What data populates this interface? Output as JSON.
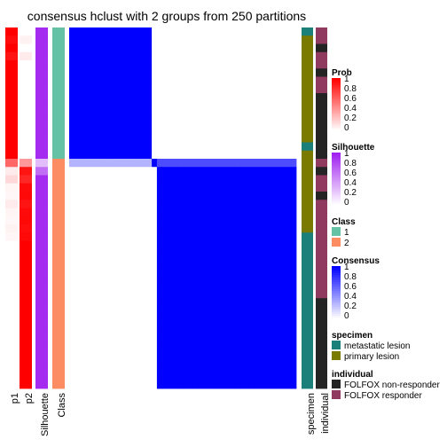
{
  "chart_data": {
    "type": "heatmap",
    "title": "consensus hclust with 2 groups from 250 partitions",
    "n_samples": 44,
    "sample_order_note": "columns/rows ordered by consensus class; first 16 samples in class 1, remaining 28 in class 2",
    "annotation_columns": [
      "p1",
      "p2",
      "Silhouette",
      "Class"
    ],
    "bottom_axis_labels": [
      "p1",
      "p2",
      "Silhouette",
      "Class",
      "specimen",
      "individual"
    ],
    "prob_p1": [
      1,
      0.95,
      1,
      0.92,
      1,
      1,
      1,
      1,
      1,
      1,
      1,
      1,
      1,
      1,
      1,
      1,
      0.6,
      0.08,
      0.15,
      0.04,
      0.03,
      0.08,
      0.04,
      0.03,
      0.05,
      0.03,
      0,
      0,
      0,
      0,
      0,
      0,
      0,
      0,
      0,
      0,
      0,
      0,
      0,
      0,
      0,
      0,
      0,
      0
    ],
    "silhouette": [
      0.95,
      0.95,
      0.95,
      0.95,
      0.95,
      0.95,
      0.95,
      0.95,
      0.95,
      0.95,
      0.95,
      0.95,
      0.95,
      0.95,
      0.95,
      0.95,
      0.3,
      0.65,
      0.95,
      0.95,
      0.95,
      0.95,
      0.95,
      0.95,
      0.95,
      0.95,
      0.95,
      0.95,
      0.95,
      0.95,
      0.95,
      0.95,
      0.95,
      0.95,
      0.95,
      0.95,
      0.95,
      0.95,
      0.95,
      0.95,
      0.95,
      0.95,
      0.95,
      0.95
    ],
    "class": [
      1,
      1,
      1,
      1,
      1,
      1,
      1,
      1,
      1,
      1,
      1,
      1,
      1,
      1,
      1,
      1,
      2,
      2,
      2,
      2,
      2,
      2,
      2,
      2,
      2,
      2,
      2,
      2,
      2,
      2,
      2,
      2,
      2,
      2,
      2,
      2,
      2,
      2,
      2,
      2,
      2,
      2,
      2,
      2
    ],
    "specimen": [
      "metastatic lesion",
      "primary lesion",
      "primary lesion",
      "primary lesion",
      "primary lesion",
      "primary lesion",
      "primary lesion",
      "primary lesion",
      "primary lesion",
      "primary lesion",
      "primary lesion",
      "primary lesion",
      "primary lesion",
      "primary lesion",
      "metastatic lesion",
      "primary lesion",
      "primary lesion",
      "primary lesion",
      "primary lesion",
      "primary lesion",
      "primary lesion",
      "primary lesion",
      "primary lesion",
      "primary lesion",
      "primary lesion",
      "metastatic lesion",
      "metastatic lesion",
      "metastatic lesion",
      "metastatic lesion",
      "metastatic lesion",
      "metastatic lesion",
      "metastatic lesion",
      "metastatic lesion",
      "metastatic lesion",
      "metastatic lesion",
      "metastatic lesion",
      "metastatic lesion",
      "metastatic lesion",
      "metastatic lesion",
      "metastatic lesion",
      "metastatic lesion",
      "metastatic lesion",
      "metastatic lesion",
      "metastatic lesion"
    ],
    "individual": [
      "FOLFOX responder",
      "FOLFOX responder",
      "FOLFOX non-responder",
      "FOLFOX responder",
      "FOLFOX responder",
      "FOLFOX non-responder",
      "FOLFOX responder",
      "FOLFOX responder",
      "FOLFOX non-responder",
      "FOLFOX non-responder",
      "FOLFOX non-responder",
      "FOLFOX non-responder",
      "FOLFOX non-responder",
      "FOLFOX non-responder",
      "FOLFOX non-responder",
      "FOLFOX non-responder",
      "FOLFOX responder",
      "FOLFOX non-responder",
      "FOLFOX responder",
      "FOLFOX responder",
      "FOLFOX non-responder",
      "FOLFOX responder",
      "FOLFOX responder",
      "FOLFOX responder",
      "FOLFOX responder",
      "FOLFOX responder",
      "FOLFOX responder",
      "FOLFOX responder",
      "FOLFOX responder",
      "FOLFOX responder",
      "FOLFOX responder",
      "FOLFOX responder",
      "FOLFOX responder",
      "FOLFOX non-responder",
      "FOLFOX non-responder",
      "FOLFOX non-responder",
      "FOLFOX non-responder",
      "FOLFOX non-responder",
      "FOLFOX non-responder",
      "FOLFOX non-responder",
      "FOLFOX non-responder",
      "FOLFOX non-responder",
      "FOLFOX non-responder",
      "FOLFOX non-responder"
    ],
    "consensus_blocks": [
      {
        "rows": [
          0,
          15
        ],
        "cols": [
          0,
          15
        ],
        "value": 1.0,
        "note": "class 1 within-cluster"
      },
      {
        "rows": [
          16,
          16
        ],
        "cols": [
          16,
          16
        ],
        "value": 1.0,
        "note": "ambiguous sample diagonal"
      },
      {
        "rows": [
          17,
          43
        ],
        "cols": [
          17,
          43
        ],
        "value": 1.0,
        "note": "class 2 within-cluster"
      },
      {
        "rows": [
          0,
          15
        ],
        "cols": [
          17,
          43
        ],
        "value": 0.0
      },
      {
        "rows": [
          17,
          43
        ],
        "cols": [
          0,
          15
        ],
        "value": 0.0
      },
      {
        "rows": [
          16,
          16
        ],
        "cols": [
          0,
          15
        ],
        "value": 0.3
      },
      {
        "rows": [
          16,
          16
        ],
        "cols": [
          17,
          43
        ],
        "value": 0.7
      }
    ],
    "consensus_range": [
      0,
      1
    ],
    "legends": [
      {
        "title": "Prob",
        "type": "continuous",
        "ticks": [
          "1",
          "0.8",
          "0.6",
          "0.4",
          "0.2",
          "0"
        ],
        "low": "#ffffff",
        "high": "#ff0000"
      },
      {
        "title": "Silhouette",
        "type": "continuous",
        "ticks": [
          "1",
          "0.8",
          "0.6",
          "0.4",
          "0.2",
          "0"
        ],
        "low": "#ffffff",
        "high": "#a020f0"
      },
      {
        "title": "Class",
        "type": "discrete",
        "items": [
          {
            "label": "1",
            "color": "#66c2a5"
          },
          {
            "label": "2",
            "color": "#fc8d62"
          }
        ]
      },
      {
        "title": "Consensus",
        "type": "continuous",
        "ticks": [
          "1",
          "0.8",
          "0.6",
          "0.4",
          "0.2",
          "0"
        ],
        "low": "#ffffff",
        "high": "#0000ff"
      },
      {
        "title": "specimen",
        "type": "discrete",
        "items": [
          {
            "label": "metastatic lesion",
            "color": "#1b7f7a"
          },
          {
            "label": "primary lesion",
            "color": "#7a7a00"
          }
        ]
      },
      {
        "title": "individual",
        "type": "discrete",
        "items": [
          {
            "label": "FOLFOX non-responder",
            "color": "#242424"
          },
          {
            "label": "FOLFOX responder",
            "color": "#8f3a5e"
          }
        ]
      }
    ]
  }
}
